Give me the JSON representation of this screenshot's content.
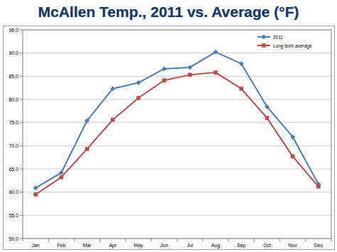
{
  "chart_data": {
    "type": "line",
    "title": "McAllen Temp., 2011 vs. Average (°F)",
    "categories": [
      "Jan",
      "Feb",
      "Mar",
      "Apr",
      "May",
      "Jun",
      "Jul",
      "Aug",
      "Sep",
      "Oct",
      "Nov",
      "Dec"
    ],
    "series": [
      {
        "name": "2011",
        "color": "#4a7ebb",
        "marker": "diamond",
        "values": [
          60.9,
          64.2,
          75.4,
          82.3,
          83.6,
          86.6,
          86.9,
          90.2,
          87.7,
          78.4,
          71.9,
          61.7
        ]
      },
      {
        "name": "Long term average",
        "color": "#be4b48",
        "marker": "square",
        "values": [
          59.5,
          63.2,
          69.3,
          75.6,
          80.3,
          84.1,
          85.3,
          85.8,
          82.3,
          76.0,
          67.7,
          61.2
        ]
      }
    ],
    "ylim": [
      50,
      95
    ],
    "yticks": [
      {
        "value": 50,
        "label": "50.0"
      },
      {
        "value": 55,
        "label": "55.0"
      },
      {
        "value": 60,
        "label": "60.0"
      },
      {
        "value": 65,
        "label": "65.0"
      },
      {
        "value": 70,
        "label": "70.0"
      },
      {
        "value": 75,
        "label": "75.0"
      },
      {
        "value": 80,
        "label": "80.0"
      },
      {
        "value": 85,
        "label": "85.0"
      },
      {
        "value": 90,
        "label": "90.0"
      },
      {
        "value": 95,
        "label": "95.0"
      }
    ],
    "grid": true,
    "legend": "upper right"
  }
}
